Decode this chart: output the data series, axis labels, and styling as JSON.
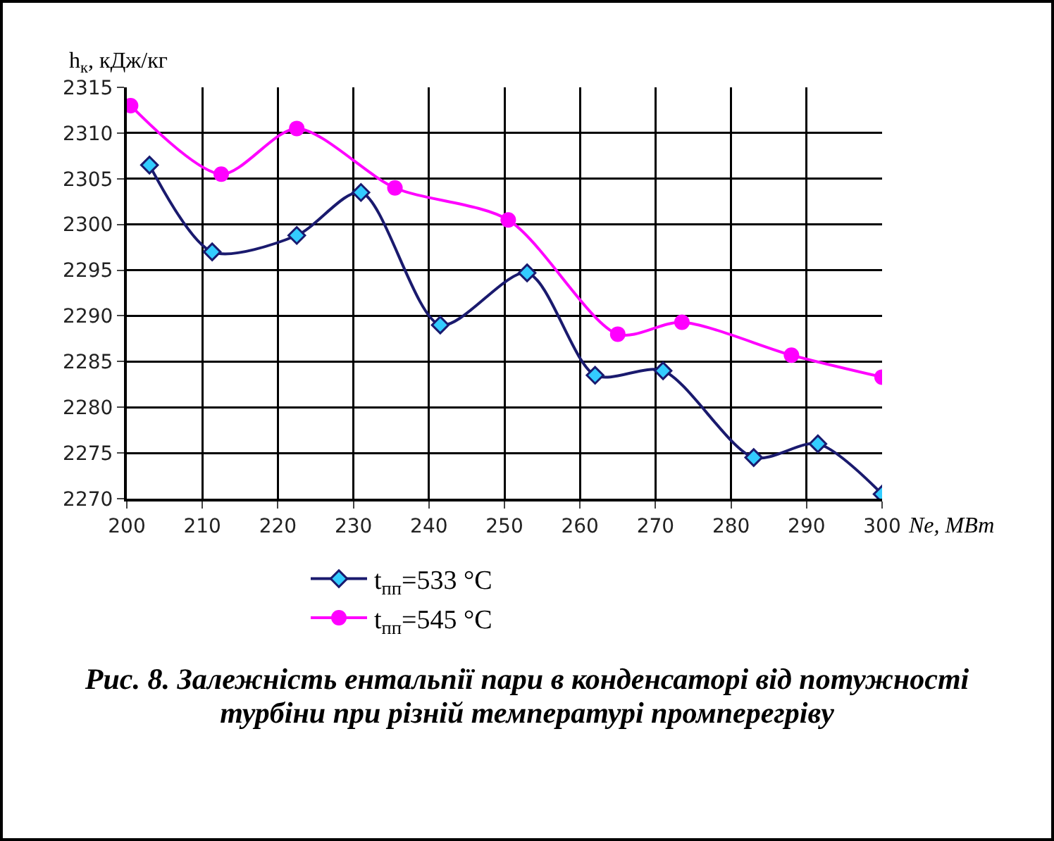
{
  "chart_data": {
    "type": "line",
    "xlabel": "Ne, МВт",
    "ylabel": "h$_{к}$, кДж/кг",
    "xlim": [
      200,
      300
    ],
    "xticks": [
      200,
      210,
      220,
      230,
      240,
      250,
      260,
      270,
      280,
      290,
      300
    ],
    "ylim": [
      2270,
      2315
    ],
    "yticks": [
      2270,
      2275,
      2280,
      2285,
      2290,
      2295,
      2300,
      2305,
      2310,
      2315
    ],
    "grid": true,
    "legend": "bottom",
    "series": [
      {
        "name": "t$_{пп}$=533 °C",
        "color": "#1a1a6e",
        "marker": "diamond",
        "x": [
          203,
          211.3,
          222.5,
          231,
          241.5,
          253,
          262,
          271,
          283,
          291.5,
          300
        ],
        "values": [
          2306.5,
          2297,
          2298.8,
          2303.5,
          2289,
          2294.7,
          2283.5,
          2284,
          2274.5,
          2276,
          2270.5
        ]
      },
      {
        "name": "t$_{пп}$=545 °C",
        "color": "#ff00ff",
        "marker": "circle",
        "x": [
          200.5,
          212.5,
          222.5,
          235.5,
          250.5,
          265,
          273.5,
          288,
          300
        ],
        "values": [
          2313,
          2305.5,
          2310.5,
          2304,
          2300.5,
          2288,
          2289.3,
          2285.7,
          2283.3
        ]
      }
    ],
    "annotations": [
      "Рис. 8. Залежність ентальпії пари в конденсаторі від потужності турбіни при різній температурі промперегріву"
    ]
  }
}
